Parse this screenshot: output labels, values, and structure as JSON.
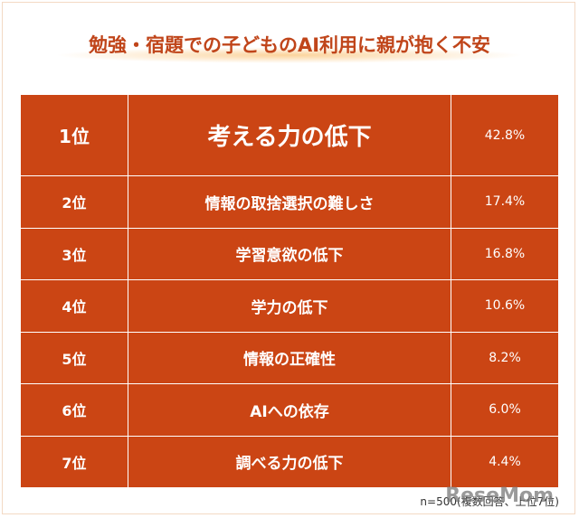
{
  "header": {
    "title": "勉強・宿題での子どものAI利用に親が抱く不安"
  },
  "table": {
    "rows": [
      [
        "1位",
        "考える力の低下",
        "42.8%"
      ],
      [
        "2位",
        "情報の取捨選択の難しさ",
        "17.4%"
      ],
      [
        "3位",
        "学習意欲の低下",
        "16.8%"
      ],
      [
        "4位",
        "学力の低下",
        "10.6%"
      ],
      [
        "5位",
        "情報の正確性",
        "8.2%"
      ],
      [
        "6位",
        "AIへの依存",
        "6.0%"
      ],
      [
        "7位",
        "調べる力の低下",
        "4.4%"
      ]
    ]
  },
  "footnote": "n=500(複数回答、上位7位)",
  "watermark": "ReseMom"
}
